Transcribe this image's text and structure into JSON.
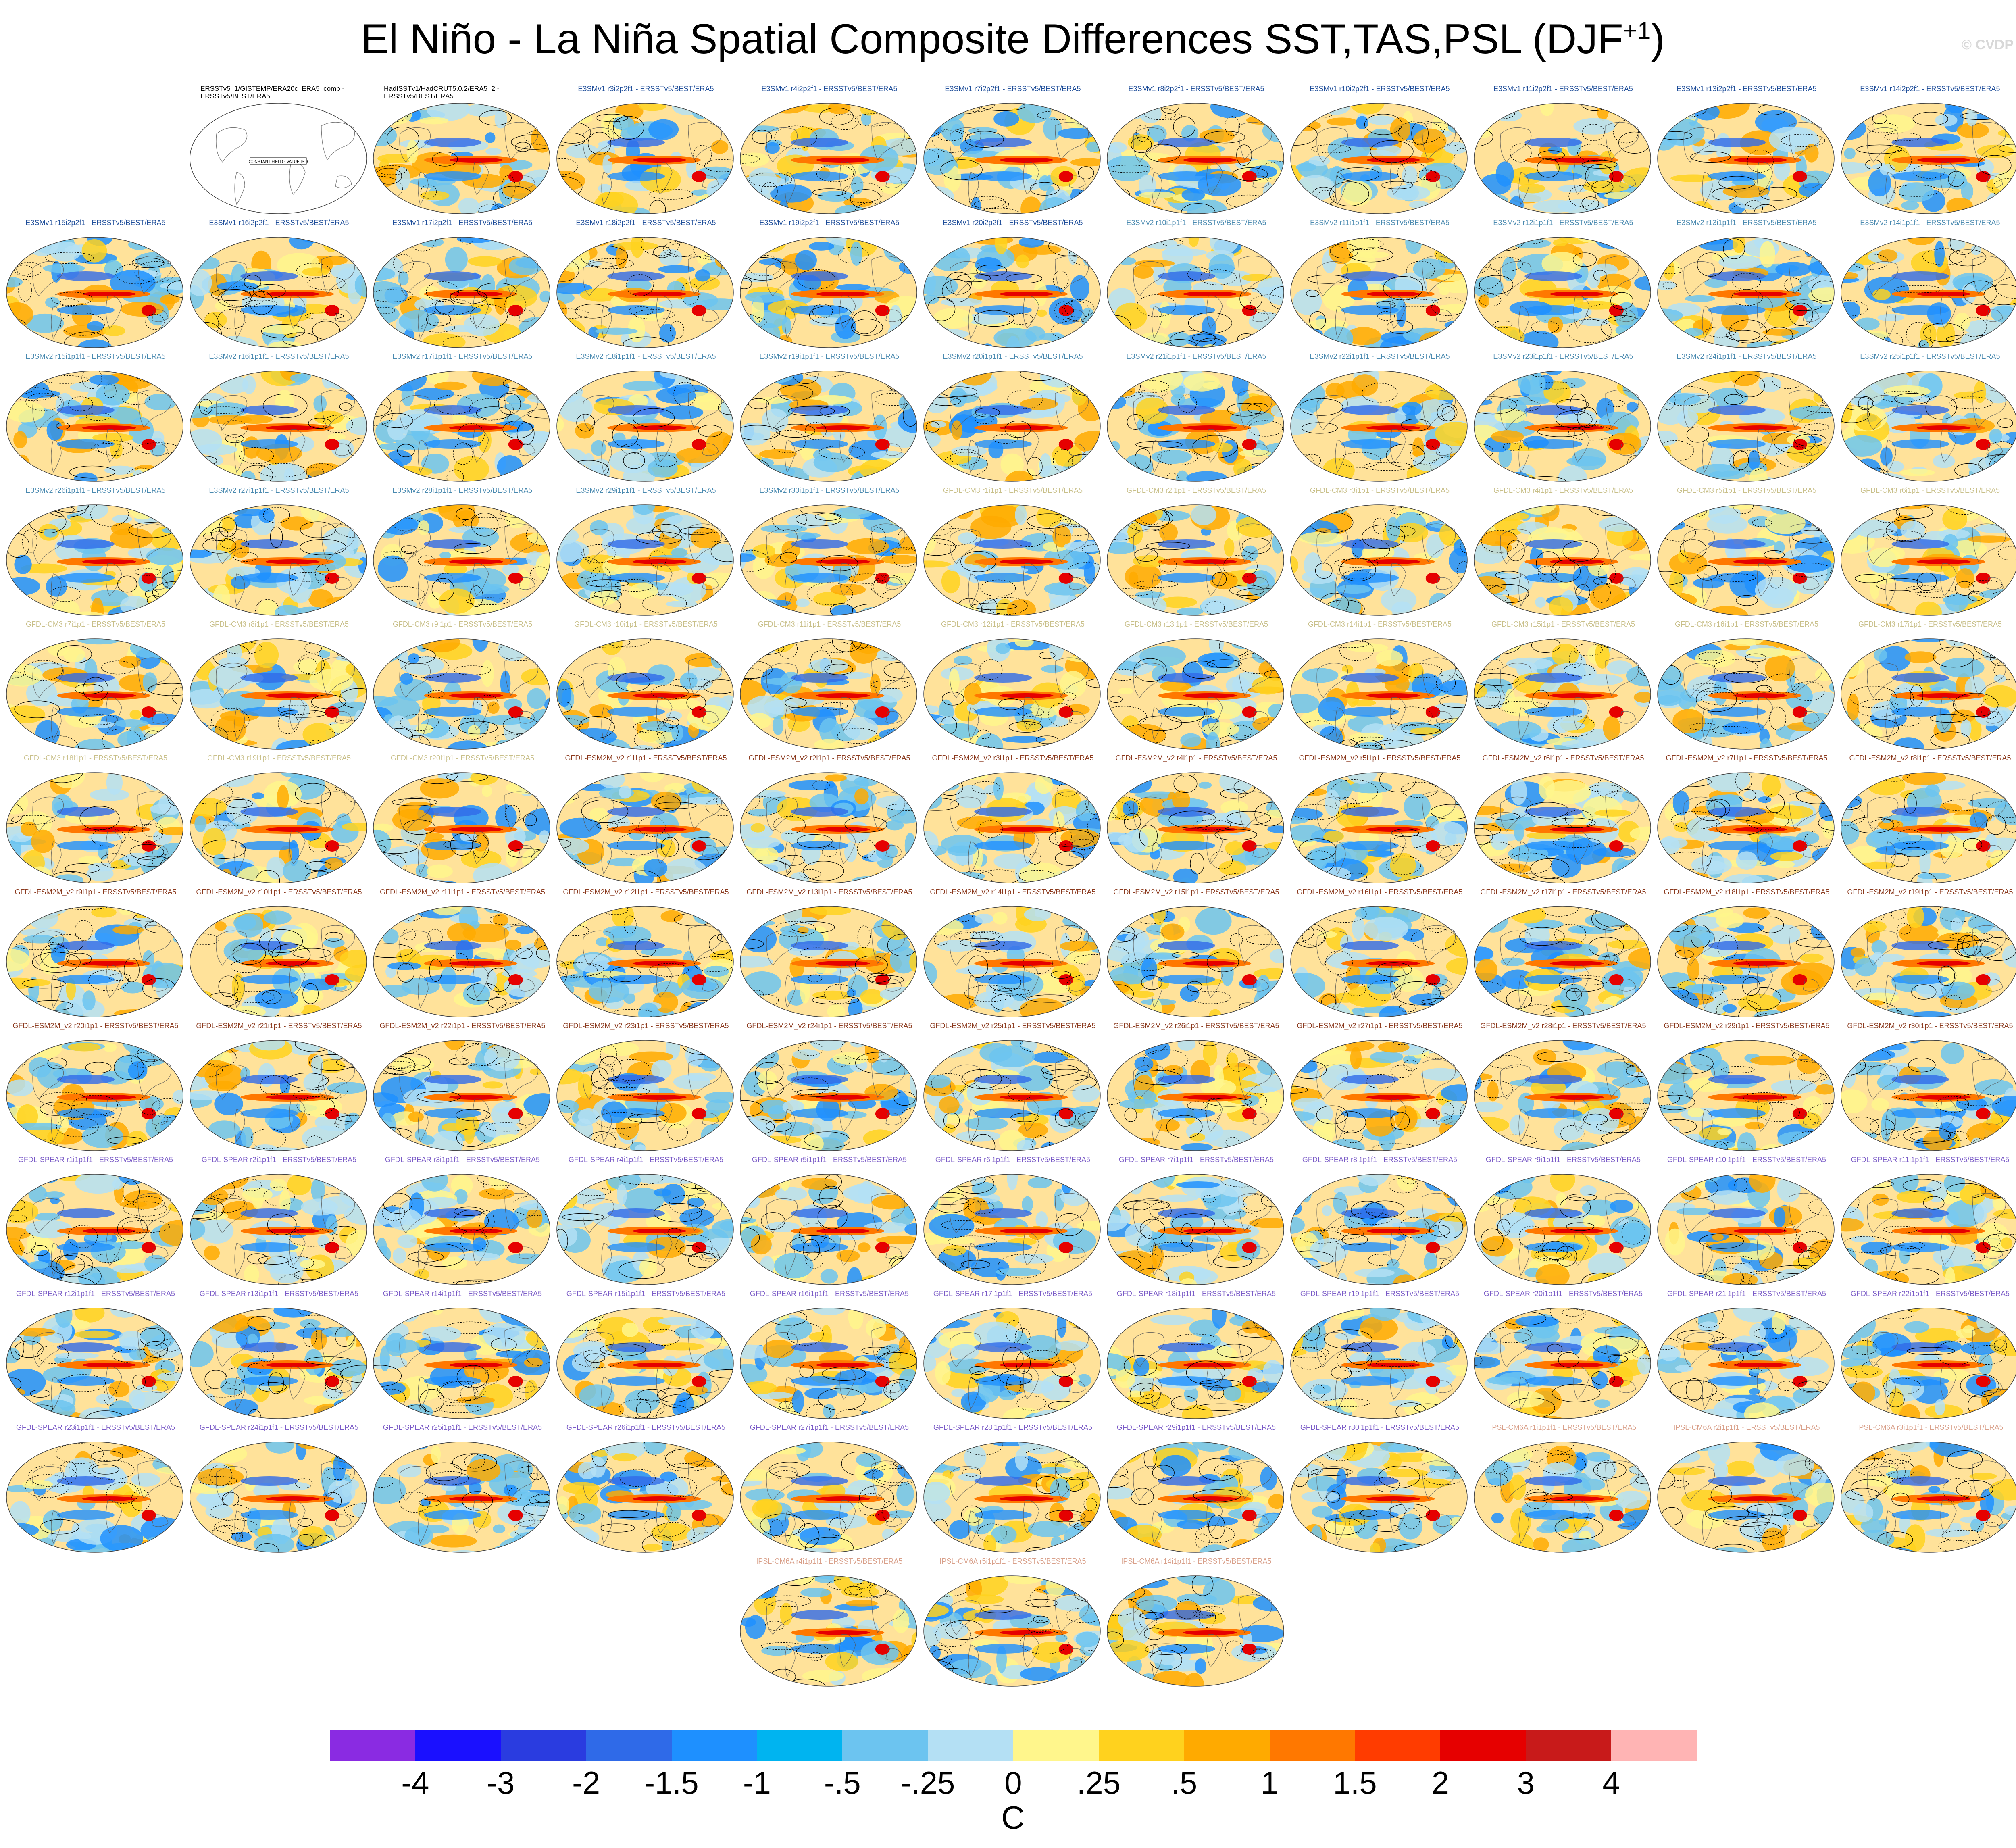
{
  "title": "El Niño - La Niña Spatial Composite Differences SST,TAS,PSL (DJF",
  "title_superscript": "+1",
  "title_suffix": ")",
  "watermark": "© CVDP",
  "panels": [
    {
      "label": "ERSSTv5_1/GISTEMP/ERA20c_ERA5_comb - ERSSTv5/BEST/ERA5",
      "kind": "obs-constant",
      "note": "CONSTANT FIELD - VALUE IS 0",
      "color": "#000000"
    },
    {
      "label": "HadISSTv1/HadCRUT5.0.2/ERA5_2 - ERSSTv5/BEST/ERA5",
      "kind": "obs",
      "color": "#000000"
    },
    {
      "label": "E3SMv1 r3i2p2f1 - ERSSTv5/BEST/ERA5",
      "kind": "model",
      "color": "#1f4e9a"
    },
    {
      "label": "E3SMv1 r4i2p2f1 - ERSSTv5/BEST/ERA5",
      "kind": "model",
      "color": "#1f4e9a"
    },
    {
      "label": "E3SMv1 r7i2p2f1 - ERSSTv5/BEST/ERA5",
      "kind": "model",
      "color": "#1f4e9a"
    },
    {
      "label": "E3SMv1 r8i2p2f1 - ERSSTv5/BEST/ERA5",
      "kind": "model",
      "color": "#1f4e9a"
    },
    {
      "label": "E3SMv1 r10i2p2f1 - ERSSTv5/BEST/ERA5",
      "kind": "model",
      "color": "#1f4e9a"
    },
    {
      "label": "E3SMv1 r11i2p2f1 - ERSSTv5/BEST/ERA5",
      "kind": "model",
      "color": "#1f4e9a"
    },
    {
      "label": "E3SMv1 r13i2p2f1 - ERSSTv5/BEST/ERA5",
      "kind": "model",
      "color": "#1f4e9a"
    },
    {
      "label": "E3SMv1 r14i2p2f1 - ERSSTv5/BEST/ERA5",
      "kind": "model",
      "color": "#1f4e9a"
    },
    {
      "label": "E3SMv1 r15i2p2f1 - ERSSTv5/BEST/ERA5",
      "kind": "model",
      "color": "#1f4e9a"
    },
    {
      "label": "E3SMv1 r16i2p2f1 - ERSSTv5/BEST/ERA5",
      "kind": "model",
      "color": "#1f4e9a"
    },
    {
      "label": "E3SMv1 r17i2p2f1 - ERSSTv5/BEST/ERA5",
      "kind": "model",
      "color": "#1f4e9a"
    },
    {
      "label": "E3SMv1 r18i2p2f1 - ERSSTv5/BEST/ERA5",
      "kind": "model",
      "color": "#1f4e9a"
    },
    {
      "label": "E3SMv1 r19i2p2f1 - ERSSTv5/BEST/ERA5",
      "kind": "model",
      "color": "#1f4e9a"
    },
    {
      "label": "E3SMv1 r20i2p2f1 - ERSSTv5/BEST/ERA5",
      "kind": "model",
      "color": "#1f4e9a"
    },
    {
      "label": "E3SMv2 r10i1p1f1 - ERSSTv5/BEST/ERA5",
      "kind": "model",
      "color": "#4a8ab0"
    },
    {
      "label": "E3SMv2 r11i1p1f1 - ERSSTv5/BEST/ERA5",
      "kind": "model",
      "color": "#4a8ab0"
    },
    {
      "label": "E3SMv2 r12i1p1f1 - ERSSTv5/BEST/ERA5",
      "kind": "model",
      "color": "#4a8ab0"
    },
    {
      "label": "E3SMv2 r13i1p1f1 - ERSSTv5/BEST/ERA5",
      "kind": "model",
      "color": "#4a8ab0"
    },
    {
      "label": "E3SMv2 r14i1p1f1 - ERSSTv5/BEST/ERA5",
      "kind": "model",
      "color": "#4a8ab0"
    },
    {
      "label": "E3SMv2 r15i1p1f1 - ERSSTv5/BEST/ERA5",
      "kind": "model",
      "color": "#4a8ab0"
    },
    {
      "label": "E3SMv2 r16i1p1f1 - ERSSTv5/BEST/ERA5",
      "kind": "model",
      "color": "#4a8ab0"
    },
    {
      "label": "E3SMv2 r17i1p1f1 - ERSSTv5/BEST/ERA5",
      "kind": "model",
      "color": "#4a8ab0"
    },
    {
      "label": "E3SMv2 r18i1p1f1 - ERSSTv5/BEST/ERA5",
      "kind": "model",
      "color": "#4a8ab0"
    },
    {
      "label": "E3SMv2 r19i1p1f1 - ERSSTv5/BEST/ERA5",
      "kind": "model",
      "color": "#4a8ab0"
    },
    {
      "label": "E3SMv2 r20i1p1f1 - ERSSTv5/BEST/ERA5",
      "kind": "model",
      "color": "#4a8ab0"
    },
    {
      "label": "E3SMv2 r21i1p1f1 - ERSSTv5/BEST/ERA5",
      "kind": "model",
      "color": "#4a8ab0"
    },
    {
      "label": "E3SMv2 r22i1p1f1 - ERSSTv5/BEST/ERA5",
      "kind": "model",
      "color": "#4a8ab0"
    },
    {
      "label": "E3SMv2 r23i1p1f1 - ERSSTv5/BEST/ERA5",
      "kind": "model",
      "color": "#4a8ab0"
    },
    {
      "label": "E3SMv2 r24i1p1f1 - ERSSTv5/BEST/ERA5",
      "kind": "model",
      "color": "#4a8ab0"
    },
    {
      "label": "E3SMv2 r25i1p1f1 - ERSSTv5/BEST/ERA5",
      "kind": "model",
      "color": "#4a8ab0"
    },
    {
      "label": "E3SMv2 r26i1p1f1 - ERSSTv5/BEST/ERA5",
      "kind": "model",
      "color": "#4a8ab0"
    },
    {
      "label": "E3SMv2 r27i1p1f1 - ERSSTv5/BEST/ERA5",
      "kind": "model",
      "color": "#4a8ab0"
    },
    {
      "label": "E3SMv2 r28i1p1f1 - ERSSTv5/BEST/ERA5",
      "kind": "model",
      "color": "#4a8ab0"
    },
    {
      "label": "E3SMv2 r29i1p1f1 - ERSSTv5/BEST/ERA5",
      "kind": "model",
      "color": "#4a8ab0"
    },
    {
      "label": "E3SMv2 r30i1p1f1 - ERSSTv5/BEST/ERA5",
      "kind": "model",
      "color": "#4a8ab0"
    },
    {
      "label": "GFDL-CM3 r1i1p1 - ERSSTv5/BEST/ERA5",
      "kind": "model",
      "color": "#c9c08a"
    },
    {
      "label": "GFDL-CM3 r2i1p1 - ERSSTv5/BEST/ERA5",
      "kind": "model",
      "color": "#c9c08a"
    },
    {
      "label": "GFDL-CM3 r3i1p1 - ERSSTv5/BEST/ERA5",
      "kind": "model",
      "color": "#c9c08a"
    },
    {
      "label": "GFDL-CM3 r4i1p1 - ERSSTv5/BEST/ERA5",
      "kind": "model",
      "color": "#c9c08a"
    },
    {
      "label": "GFDL-CM3 r5i1p1 - ERSSTv5/BEST/ERA5",
      "kind": "model",
      "color": "#c9c08a"
    },
    {
      "label": "GFDL-CM3 r6i1p1 - ERSSTv5/BEST/ERA5",
      "kind": "model",
      "color": "#c9c08a"
    },
    {
      "label": "GFDL-CM3 r7i1p1 - ERSSTv5/BEST/ERA5",
      "kind": "model",
      "color": "#c9c08a"
    },
    {
      "label": "GFDL-CM3 r8i1p1 - ERSSTv5/BEST/ERA5",
      "kind": "model",
      "color": "#c9c08a"
    },
    {
      "label": "GFDL-CM3 r9i1p1 - ERSSTv5/BEST/ERA5",
      "kind": "model",
      "color": "#c9c08a"
    },
    {
      "label": "GFDL-CM3 r10i1p1 - ERSSTv5/BEST/ERA5",
      "kind": "model",
      "color": "#c9c08a"
    },
    {
      "label": "GFDL-CM3 r11i1p1 - ERSSTv5/BEST/ERA5",
      "kind": "model",
      "color": "#c9c08a"
    },
    {
      "label": "GFDL-CM3 r12i1p1 - ERSSTv5/BEST/ERA5",
      "kind": "model",
      "color": "#c9c08a"
    },
    {
      "label": "GFDL-CM3 r13i1p1 - ERSSTv5/BEST/ERA5",
      "kind": "model",
      "color": "#c9c08a"
    },
    {
      "label": "GFDL-CM3 r14i1p1 - ERSSTv5/BEST/ERA5",
      "kind": "model",
      "color": "#c9c08a"
    },
    {
      "label": "GFDL-CM3 r15i1p1 - ERSSTv5/BEST/ERA5",
      "kind": "model",
      "color": "#c9c08a"
    },
    {
      "label": "GFDL-CM3 r16i1p1 - ERSSTv5/BEST/ERA5",
      "kind": "model",
      "color": "#c9c08a"
    },
    {
      "label": "GFDL-CM3 r17i1p1 - ERSSTv5/BEST/ERA5",
      "kind": "model",
      "color": "#c9c08a"
    },
    {
      "label": "GFDL-CM3 r18i1p1 - ERSSTv5/BEST/ERA5",
      "kind": "model",
      "color": "#c9c08a"
    },
    {
      "label": "GFDL-CM3 r19i1p1 - ERSSTv5/BEST/ERA5",
      "kind": "model",
      "color": "#c9c08a"
    },
    {
      "label": "GFDL-CM3 r20i1p1 - ERSSTv5/BEST/ERA5",
      "kind": "model",
      "color": "#c9c08a"
    },
    {
      "label": "GFDL-ESM2M_v2 r1i1p1 - ERSSTv5/BEST/ERA5",
      "kind": "model",
      "color": "#8b3a1e"
    },
    {
      "label": "GFDL-ESM2M_v2 r2i1p1 - ERSSTv5/BEST/ERA5",
      "kind": "model",
      "color": "#8b3a1e"
    },
    {
      "label": "GFDL-ESM2M_v2 r3i1p1 - ERSSTv5/BEST/ERA5",
      "kind": "model",
      "color": "#8b3a1e"
    },
    {
      "label": "GFDL-ESM2M_v2 r4i1p1 - ERSSTv5/BEST/ERA5",
      "kind": "model",
      "color": "#8b3a1e"
    },
    {
      "label": "GFDL-ESM2M_v2 r5i1p1 - ERSSTv5/BEST/ERA5",
      "kind": "model",
      "color": "#8b3a1e"
    },
    {
      "label": "GFDL-ESM2M_v2 r6i1p1 - ERSSTv5/BEST/ERA5",
      "kind": "model",
      "color": "#8b3a1e"
    },
    {
      "label": "GFDL-ESM2M_v2 r7i1p1 - ERSSTv5/BEST/ERA5",
      "kind": "model",
      "color": "#8b3a1e"
    },
    {
      "label": "GFDL-ESM2M_v2 r8i1p1 - ERSSTv5/BEST/ERA5",
      "kind": "model",
      "color": "#8b3a1e"
    },
    {
      "label": "GFDL-ESM2M_v2 r9i1p1 - ERSSTv5/BEST/ERA5",
      "kind": "model",
      "color": "#8b3a1e"
    },
    {
      "label": "GFDL-ESM2M_v2 r10i1p1 - ERSSTv5/BEST/ERA5",
      "kind": "model",
      "color": "#8b3a1e"
    },
    {
      "label": "GFDL-ESM2M_v2 r11i1p1 - ERSSTv5/BEST/ERA5",
      "kind": "model",
      "color": "#8b3a1e"
    },
    {
      "label": "GFDL-ESM2M_v2 r12i1p1 - ERSSTv5/BEST/ERA5",
      "kind": "model",
      "color": "#8b3a1e"
    },
    {
      "label": "GFDL-ESM2M_v2 r13i1p1 - ERSSTv5/BEST/ERA5",
      "kind": "model",
      "color": "#8b3a1e"
    },
    {
      "label": "GFDL-ESM2M_v2 r14i1p1 - ERSSTv5/BEST/ERA5",
      "kind": "model",
      "color": "#8b3a1e"
    },
    {
      "label": "GFDL-ESM2M_v2 r15i1p1 - ERSSTv5/BEST/ERA5",
      "kind": "model",
      "color": "#8b3a1e"
    },
    {
      "label": "GFDL-ESM2M_v2 r16i1p1 - ERSSTv5/BEST/ERA5",
      "kind": "model",
      "color": "#8b3a1e"
    },
    {
      "label": "GFDL-ESM2M_v2 r17i1p1 - ERSSTv5/BEST/ERA5",
      "kind": "model",
      "color": "#8b3a1e"
    },
    {
      "label": "GFDL-ESM2M_v2 r18i1p1 - ERSSTv5/BEST/ERA5",
      "kind": "model",
      "color": "#8b3a1e"
    },
    {
      "label": "GFDL-ESM2M_v2 r19i1p1 - ERSSTv5/BEST/ERA5",
      "kind": "model",
      "color": "#8b3a1e"
    },
    {
      "label": "GFDL-ESM2M_v2 r20i1p1 - ERSSTv5/BEST/ERA5",
      "kind": "model",
      "color": "#8b3a1e"
    },
    {
      "label": "GFDL-ESM2M_v2 r21i1p1 - ERSSTv5/BEST/ERA5",
      "kind": "model",
      "color": "#8b3a1e"
    },
    {
      "label": "GFDL-ESM2M_v2 r22i1p1 - ERSSTv5/BEST/ERA5",
      "kind": "model",
      "color": "#8b3a1e"
    },
    {
      "label": "GFDL-ESM2M_v2 r23i1p1 - ERSSTv5/BEST/ERA5",
      "kind": "model",
      "color": "#8b3a1e"
    },
    {
      "label": "GFDL-ESM2M_v2 r24i1p1 - ERSSTv5/BEST/ERA5",
      "kind": "model",
      "color": "#8b3a1e"
    },
    {
      "label": "GFDL-ESM2M_v2 r25i1p1 - ERSSTv5/BEST/ERA5",
      "kind": "model",
      "color": "#8b3a1e"
    },
    {
      "label": "GFDL-ESM2M_v2 r26i1p1 - ERSSTv5/BEST/ERA5",
      "kind": "model",
      "color": "#8b3a1e"
    },
    {
      "label": "GFDL-ESM2M_v2 r27i1p1 - ERSSTv5/BEST/ERA5",
      "kind": "model",
      "color": "#8b3a1e"
    },
    {
      "label": "GFDL-ESM2M_v2 r28i1p1 - ERSSTv5/BEST/ERA5",
      "kind": "model",
      "color": "#8b3a1e"
    },
    {
      "label": "GFDL-ESM2M_v2 r29i1p1 - ERSSTv5/BEST/ERA5",
      "kind": "model",
      "color": "#8b3a1e"
    },
    {
      "label": "GFDL-ESM2M_v2 r30i1p1 - ERSSTv5/BEST/ERA5",
      "kind": "model",
      "color": "#8b3a1e"
    },
    {
      "label": "GFDL-SPEAR r1i1p1f1 - ERSSTv5/BEST/ERA5",
      "kind": "model",
      "color": "#7a5bc7"
    },
    {
      "label": "GFDL-SPEAR r2i1p1f1 - ERSSTv5/BEST/ERA5",
      "kind": "model",
      "color": "#7a5bc7"
    },
    {
      "label": "GFDL-SPEAR r3i1p1f1 - ERSSTv5/BEST/ERA5",
      "kind": "model",
      "color": "#7a5bc7"
    },
    {
      "label": "GFDL-SPEAR r4i1p1f1 - ERSSTv5/BEST/ERA5",
      "kind": "model",
      "color": "#7a5bc7"
    },
    {
      "label": "GFDL-SPEAR r5i1p1f1 - ERSSTv5/BEST/ERA5",
      "kind": "model",
      "color": "#7a5bc7"
    },
    {
      "label": "GFDL-SPEAR r6i1p1f1 - ERSSTv5/BEST/ERA5",
      "kind": "model",
      "color": "#7a5bc7"
    },
    {
      "label": "GFDL-SPEAR r7i1p1f1 - ERSSTv5/BEST/ERA5",
      "kind": "model",
      "color": "#7a5bc7"
    },
    {
      "label": "GFDL-SPEAR r8i1p1f1 - ERSSTv5/BEST/ERA5",
      "kind": "model",
      "color": "#7a5bc7"
    },
    {
      "label": "GFDL-SPEAR r9i1p1f1 - ERSSTv5/BEST/ERA5",
      "kind": "model",
      "color": "#7a5bc7"
    },
    {
      "label": "GFDL-SPEAR r10i1p1f1 - ERSSTv5/BEST/ERA5",
      "kind": "model",
      "color": "#7a5bc7"
    },
    {
      "label": "GFDL-SPEAR r11i1p1f1 - ERSSTv5/BEST/ERA5",
      "kind": "model",
      "color": "#7a5bc7"
    },
    {
      "label": "GFDL-SPEAR r12i1p1f1 - ERSSTv5/BEST/ERA5",
      "kind": "model",
      "color": "#7a5bc7"
    },
    {
      "label": "GFDL-SPEAR r13i1p1f1 - ERSSTv5/BEST/ERA5",
      "kind": "model",
      "color": "#7a5bc7"
    },
    {
      "label": "GFDL-SPEAR r14i1p1f1 - ERSSTv5/BEST/ERA5",
      "kind": "model",
      "color": "#7a5bc7"
    },
    {
      "label": "GFDL-SPEAR r15i1p1f1 - ERSSTv5/BEST/ERA5",
      "kind": "model",
      "color": "#7a5bc7"
    },
    {
      "label": "GFDL-SPEAR r16i1p1f1 - ERSSTv5/BEST/ERA5",
      "kind": "model",
      "color": "#7a5bc7"
    },
    {
      "label": "GFDL-SPEAR r17i1p1f1 - ERSSTv5/BEST/ERA5",
      "kind": "model",
      "color": "#7a5bc7"
    },
    {
      "label": "GFDL-SPEAR r18i1p1f1 - ERSSTv5/BEST/ERA5",
      "kind": "model",
      "color": "#7a5bc7"
    },
    {
      "label": "GFDL-SPEAR r19i1p1f1 - ERSSTv5/BEST/ERA5",
      "kind": "model",
      "color": "#7a5bc7"
    },
    {
      "label": "GFDL-SPEAR r20i1p1f1 - ERSSTv5/BEST/ERA5",
      "kind": "model",
      "color": "#7a5bc7"
    },
    {
      "label": "GFDL-SPEAR r21i1p1f1 - ERSSTv5/BEST/ERA5",
      "kind": "model",
      "color": "#7a5bc7"
    },
    {
      "label": "GFDL-SPEAR r22i1p1f1 - ERSSTv5/BEST/ERA5",
      "kind": "model",
      "color": "#7a5bc7"
    },
    {
      "label": "GFDL-SPEAR r23i1p1f1 - ERSSTv5/BEST/ERA5",
      "kind": "model",
      "color": "#7a5bc7"
    },
    {
      "label": "GFDL-SPEAR r24i1p1f1 - ERSSTv5/BEST/ERA5",
      "kind": "model",
      "color": "#7a5bc7"
    },
    {
      "label": "GFDL-SPEAR r25i1p1f1 - ERSSTv5/BEST/ERA5",
      "kind": "model",
      "color": "#7a5bc7"
    },
    {
      "label": "GFDL-SPEAR r26i1p1f1 - ERSSTv5/BEST/ERA5",
      "kind": "model",
      "color": "#7a5bc7"
    },
    {
      "label": "GFDL-SPEAR r27i1p1f1 - ERSSTv5/BEST/ERA5",
      "kind": "model",
      "color": "#7a5bc7"
    },
    {
      "label": "GFDL-SPEAR r28i1p1f1 - ERSSTv5/BEST/ERA5",
      "kind": "model",
      "color": "#7a5bc7"
    },
    {
      "label": "GFDL-SPEAR r29i1p1f1 - ERSSTv5/BEST/ERA5",
      "kind": "model",
      "color": "#7a5bc7"
    },
    {
      "label": "GFDL-SPEAR r30i1p1f1 - ERSSTv5/BEST/ERA5",
      "kind": "model",
      "color": "#7a5bc7"
    },
    {
      "label": "IPSL-CM6A r1i1p1f1 - ERSSTv5/BEST/ERA5",
      "kind": "model",
      "color": "#d9a08a"
    },
    {
      "label": "IPSL-CM6A r2i1p1f1 - ERSSTv5/BEST/ERA5",
      "kind": "model",
      "color": "#d9a08a"
    },
    {
      "label": "IPSL-CM6A r3i1p1f1 - ERSSTv5/BEST/ERA5",
      "kind": "model",
      "color": "#d9a08a"
    },
    {
      "label": "IPSL-CM6A r4i1p1f1 - ERSSTv5/BEST/ERA5",
      "kind": "model",
      "color": "#d9a08a"
    },
    {
      "label": "IPSL-CM6A r5i1p1f1 - ERSSTv5/BEST/ERA5",
      "kind": "model",
      "color": "#d9a08a"
    },
    {
      "label": "IPSL-CM6A r14i1p1f1 - ERSSTv5/BEST/ERA5",
      "kind": "model",
      "color": "#d9a08a"
    }
  ],
  "colorbar": {
    "colors": [
      "#8a2be2",
      "#1a10ff",
      "#2a3ce0",
      "#2f6ae8",
      "#1e90ff",
      "#00b4f0",
      "#6cc4f0",
      "#b4e0f4",
      "#fff68c",
      "#ffd21e",
      "#ffaa00",
      "#ff7800",
      "#ff3c00",
      "#e60000",
      "#c81a1a",
      "#ffb4b4"
    ],
    "ticks": [
      "-4",
      "-3",
      "-2",
      "-1.5",
      "-1",
      "-.5",
      "-.25",
      "0",
      ".25",
      ".5",
      "1",
      "1.5",
      "2",
      "3",
      "4"
    ],
    "units": "C"
  }
}
